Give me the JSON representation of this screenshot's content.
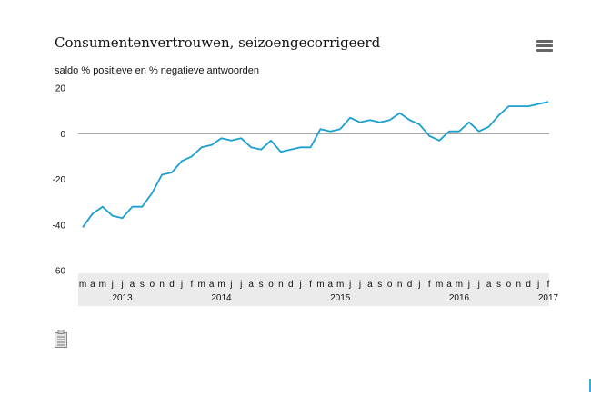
{
  "header": {
    "title": "Consumentenvertrouwen, seizoengecorrigeerd",
    "menu_icon": "hamburger-menu-icon"
  },
  "footer": {
    "table_icon": "table-icon"
  },
  "chart_data": {
    "type": "line",
    "title": "Consumentenvertrouwen, seizoengecorrigeerd",
    "subtitle": "saldo % positieve en % negatieve antwoorden",
    "xlabel": "",
    "ylabel": "",
    "ylim": [
      -60,
      20
    ],
    "yticks": [
      "20",
      "0",
      "-20",
      "-40",
      "-60"
    ],
    "ytick_values": [
      20,
      0,
      -20,
      -40,
      -60
    ],
    "grid": "horizontal zero line only",
    "legend": "none",
    "line_color": "#1a9fd0",
    "month_labels": [
      "m",
      "a",
      "m",
      "j",
      "j",
      "a",
      "s",
      "o",
      "n",
      "d",
      "j",
      "f",
      "m",
      "a",
      "m",
      "j",
      "j",
      "a",
      "s",
      "o",
      "n",
      "d",
      "j",
      "f",
      "m",
      "a",
      "m",
      "j",
      "j",
      "a",
      "s",
      "o",
      "n",
      "d",
      "j",
      "f",
      "m",
      "a",
      "m",
      "j",
      "j",
      "a",
      "s",
      "o",
      "n",
      "d",
      "j",
      "f"
    ],
    "year_labels": [
      {
        "label": "2013",
        "at_month": 4
      },
      {
        "label": "2014",
        "at_month": 14
      },
      {
        "label": "2015",
        "at_month": 26
      },
      {
        "label": "2016",
        "at_month": 38
      },
      {
        "label": "2017",
        "at_month": 47
      }
    ],
    "series": [
      {
        "values": [
          -41,
          -35,
          -32,
          -36,
          -37,
          -32,
          -32,
          -26,
          -18,
          -17,
          -12,
          -10,
          -6,
          -5,
          -2,
          -3,
          -2,
          -6,
          -7,
          -3,
          -8,
          -7,
          -6,
          -6,
          2,
          1,
          2,
          7,
          5,
          6,
          5,
          6,
          9,
          6,
          4,
          -1,
          -3,
          1,
          1,
          5,
          1,
          3,
          8,
          12,
          12,
          12,
          13,
          14
        ]
      }
    ]
  }
}
